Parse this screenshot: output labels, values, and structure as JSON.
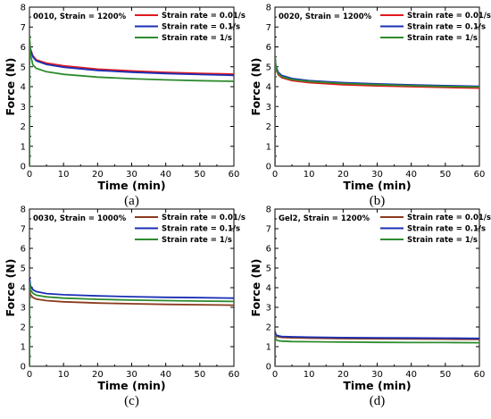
{
  "chart_data": [
    {
      "type": "line",
      "panel_label": "(a)",
      "title": "0010, Strain = 1200%",
      "xlabel": "Time (min)",
      "ylabel": "Force (N)",
      "xlim": [
        0,
        60
      ],
      "ylim": [
        0,
        8
      ],
      "xticks": [
        "0",
        "10",
        "20",
        "30",
        "40",
        "50",
        "60"
      ],
      "yticks": [
        "0",
        "1",
        "2",
        "3",
        "4",
        "5",
        "6",
        "7",
        "8"
      ],
      "legend_position": "top-right",
      "series": [
        {
          "name": "Strain rate = 0.01/s",
          "color": "#e0191e",
          "x": [
            0,
            0.3,
            1,
            2,
            5,
            10,
            20,
            30,
            40,
            50,
            60
          ],
          "y": [
            6.4,
            5.9,
            5.55,
            5.35,
            5.18,
            5.05,
            4.88,
            4.79,
            4.72,
            4.67,
            4.63
          ]
        },
        {
          "name": "Strain rate = 0.1/s",
          "color": "#1a2fb5",
          "x": [
            0,
            0.3,
            1,
            2,
            5,
            10,
            20,
            30,
            40,
            50,
            60
          ],
          "y": [
            6.3,
            5.85,
            5.5,
            5.3,
            5.12,
            4.98,
            4.82,
            4.73,
            4.66,
            4.61,
            4.57
          ]
        },
        {
          "name": "Strain rate = 1/s",
          "color": "#2e8b2e",
          "x": [
            0,
            0.3,
            1,
            2,
            5,
            10,
            20,
            30,
            40,
            50,
            60
          ],
          "y": [
            6.6,
            5.6,
            5.1,
            4.92,
            4.75,
            4.62,
            4.48,
            4.4,
            4.34,
            4.3,
            4.27
          ]
        }
      ]
    },
    {
      "type": "line",
      "panel_label": "(b)",
      "title": "0020, Strain = 1200%",
      "xlabel": "Time (min)",
      "ylabel": "Force (N)",
      "xlim": [
        0,
        60
      ],
      "ylim": [
        0,
        8
      ],
      "xticks": [
        "0",
        "10",
        "20",
        "30",
        "40",
        "50",
        "60"
      ],
      "yticks": [
        "0",
        "1",
        "2",
        "3",
        "4",
        "5",
        "6",
        "7",
        "8"
      ],
      "legend_position": "top-right",
      "series": [
        {
          "name": "Strain rate = 0.01/s",
          "color": "#e0191e",
          "x": [
            0,
            0.3,
            1,
            2,
            5,
            10,
            20,
            30,
            40,
            50,
            60
          ],
          "y": [
            5.3,
            4.85,
            4.6,
            4.45,
            4.3,
            4.2,
            4.1,
            4.04,
            4.0,
            3.96,
            3.93
          ]
        },
        {
          "name": "Strain rate = 0.1/s",
          "color": "#1a2fb5",
          "x": [
            0,
            0.3,
            1,
            2,
            5,
            10,
            20,
            30,
            40,
            50,
            60
          ],
          "y": [
            5.5,
            5.0,
            4.72,
            4.56,
            4.41,
            4.3,
            4.2,
            4.14,
            4.09,
            4.05,
            4.02
          ]
        },
        {
          "name": "Strain rate = 1/s",
          "color": "#2e8b2e",
          "x": [
            0,
            0.3,
            1,
            2,
            5,
            10,
            20,
            30,
            40,
            50,
            60
          ],
          "y": [
            5.6,
            4.9,
            4.65,
            4.5,
            4.36,
            4.26,
            4.16,
            4.1,
            4.05,
            4.01,
            3.98
          ]
        }
      ]
    },
    {
      "type": "line",
      "panel_label": "(c)",
      "title": "0030, Strain = 1000%",
      "xlabel": "Time (min)",
      "ylabel": "Force (N)",
      "xlim": [
        0,
        60
      ],
      "ylim": [
        0,
        8
      ],
      "xticks": [
        "0",
        "10",
        "20",
        "30",
        "40",
        "50",
        "60"
      ],
      "yticks": [
        "0",
        "1",
        "2",
        "3",
        "4",
        "5",
        "6",
        "7",
        "8"
      ],
      "legend_position": "top-right",
      "series": [
        {
          "name": "Strain rate = 0.01/s",
          "color": "#8b3a1e",
          "x": [
            0,
            0.3,
            1,
            2,
            5,
            10,
            20,
            30,
            40,
            50,
            60
          ],
          "y": [
            4.0,
            3.65,
            3.5,
            3.42,
            3.34,
            3.28,
            3.22,
            3.18,
            3.15,
            3.13,
            3.11
          ]
        },
        {
          "name": "Strain rate = 0.1/s",
          "color": "#1a2fb5",
          "x": [
            0,
            0.3,
            1,
            2,
            5,
            10,
            20,
            30,
            40,
            50,
            60
          ],
          "y": [
            4.5,
            4.1,
            3.9,
            3.8,
            3.7,
            3.64,
            3.58,
            3.54,
            3.51,
            3.49,
            3.47
          ]
        },
        {
          "name": "Strain rate = 1/s",
          "color": "#2e8b2e",
          "x": [
            0,
            0.3,
            1,
            2,
            5,
            10,
            20,
            30,
            40,
            50,
            60
          ],
          "y": [
            4.3,
            3.9,
            3.72,
            3.62,
            3.53,
            3.47,
            3.41,
            3.37,
            3.34,
            3.32,
            3.3
          ]
        }
      ]
    },
    {
      "type": "line",
      "panel_label": "(d)",
      "title": "Gel2, Strain = 1200%",
      "xlabel": "Time (min)",
      "ylabel": "Force (N)",
      "xlim": [
        0,
        60
      ],
      "ylim": [
        0,
        8
      ],
      "xticks": [
        "0",
        "10",
        "20",
        "30",
        "40",
        "50",
        "60"
      ],
      "yticks": [
        "0",
        "1",
        "2",
        "3",
        "4",
        "5",
        "6",
        "7",
        "8"
      ],
      "legend_position": "top-right",
      "series": [
        {
          "name": "Strain rate = 0.01/s",
          "color": "#8b3a1e",
          "x": [
            0,
            0.3,
            1,
            2,
            5,
            10,
            20,
            30,
            40,
            50,
            60
          ],
          "y": [
            1.75,
            1.55,
            1.5,
            1.47,
            1.45,
            1.43,
            1.41,
            1.4,
            1.39,
            1.38,
            1.37
          ]
        },
        {
          "name": "Strain rate = 0.1/s",
          "color": "#1a2fb5",
          "x": [
            0,
            0.3,
            1,
            2,
            5,
            10,
            20,
            30,
            40,
            50,
            60
          ],
          "y": [
            1.8,
            1.6,
            1.55,
            1.52,
            1.5,
            1.48,
            1.46,
            1.45,
            1.44,
            1.43,
            1.42
          ]
        },
        {
          "name": "Strain rate = 1/s",
          "color": "#2e8b2e",
          "x": [
            0,
            0.3,
            1,
            2,
            5,
            10,
            20,
            30,
            40,
            50,
            60
          ],
          "y": [
            1.6,
            1.35,
            1.3,
            1.28,
            1.26,
            1.25,
            1.23,
            1.22,
            1.21,
            1.21,
            1.2
          ]
        }
      ]
    }
  ]
}
